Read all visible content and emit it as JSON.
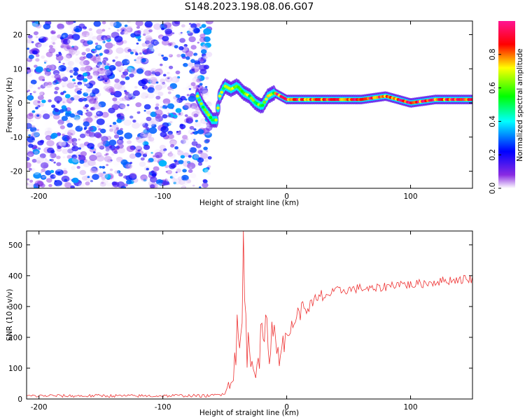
{
  "figure_title": "S148.2023.198.08.06.G07",
  "chart_data": [
    {
      "type": "heatmap",
      "xlabel": "Height of straight line (km)",
      "ylabel": "Frequency (Hz)",
      "xlim": [
        -210,
        150
      ],
      "ylim": [
        -25,
        24
      ],
      "x_ticks": [
        -200,
        -100,
        0,
        100
      ],
      "y_ticks": [
        -20,
        -10,
        0,
        10,
        20
      ],
      "colorbar": {
        "label": "Normalized spectral amplitude",
        "range": [
          0,
          1
        ],
        "ticks": [
          0.0,
          0.2,
          0.4,
          0.6,
          0.8
        ],
        "colors": [
          "#ffffff",
          "#8a2be2",
          "#0000ff",
          "#00ffff",
          "#00ff00",
          "#ffff00",
          "#ff0000",
          "#ff1493"
        ]
      },
      "noise_region": {
        "x_start": -210,
        "x_end": -62,
        "freq_min": -25,
        "freq_max": 24,
        "max_amplitude": 0.35
      },
      "ridge": [
        {
          "x": -72,
          "freq": 2
        },
        {
          "x": -68,
          "freq": -1
        },
        {
          "x": -64,
          "freq": -3
        },
        {
          "x": -60,
          "freq": -5
        },
        {
          "x": -57,
          "freq": -5
        },
        {
          "x": -54,
          "freq": 2
        },
        {
          "x": -50,
          "freq": 5
        },
        {
          "x": -45,
          "freq": 4
        },
        {
          "x": -40,
          "freq": 5
        },
        {
          "x": -35,
          "freq": 3
        },
        {
          "x": -30,
          "freq": 2
        },
        {
          "x": -25,
          "freq": 0
        },
        {
          "x": -20,
          "freq": -1
        },
        {
          "x": -15,
          "freq": 2
        },
        {
          "x": -10,
          "freq": 3
        },
        {
          "x": 0,
          "freq": 1
        },
        {
          "x": 20,
          "freq": 1
        },
        {
          "x": 40,
          "freq": 1
        },
        {
          "x": 60,
          "freq": 1
        },
        {
          "x": 80,
          "freq": 2
        },
        {
          "x": 100,
          "freq": 0
        },
        {
          "x": 120,
          "freq": 1
        },
        {
          "x": 150,
          "freq": 1
        }
      ]
    },
    {
      "type": "line",
      "xlabel": "Height of straight line (km)",
      "ylabel": "SNR (10 * v/v)",
      "xlim": [
        -210,
        150
      ],
      "ylim": [
        0,
        545
      ],
      "x_ticks": [
        -200,
        -100,
        0,
        100
      ],
      "y_ticks": [
        0,
        100,
        200,
        300,
        400,
        500
      ],
      "color": "#ee3333",
      "x_step": 1,
      "series": [
        {
          "values": [
            [
              -210,
              10
            ],
            [
              -200,
              10
            ],
            [
              -190,
              11
            ],
            [
              -180,
              10
            ],
            [
              -170,
              10
            ],
            [
              -160,
              10
            ],
            [
              -150,
              11
            ],
            [
              -140,
              10
            ],
            [
              -130,
              10
            ],
            [
              -120,
              10
            ],
            [
              -110,
              10
            ],
            [
              -100,
              10
            ],
            [
              -90,
              11
            ],
            [
              -80,
              11
            ],
            [
              -70,
              10
            ],
            [
              -60,
              11
            ],
            [
              -55,
              14
            ],
            [
              -50,
              25
            ],
            [
              -45,
              55
            ],
            [
              -42,
              130
            ],
            [
              -40,
              200
            ],
            [
              -38,
              150
            ],
            [
              -36,
              240
            ],
            [
              -35,
              545
            ],
            [
              -34,
              300
            ],
            [
              -32,
              180
            ],
            [
              -30,
              140
            ],
            [
              -25,
              120
            ],
            [
              -20,
              180
            ],
            [
              -15,
              200
            ],
            [
              -10,
              210
            ],
            [
              -5,
              170
            ],
            [
              0,
              190
            ],
            [
              5,
              250
            ],
            [
              10,
              280
            ],
            [
              15,
              300
            ],
            [
              20,
              300
            ],
            [
              25,
              320
            ],
            [
              30,
              335
            ],
            [
              35,
              340
            ],
            [
              40,
              350
            ],
            [
              50,
              355
            ],
            [
              60,
              360
            ],
            [
              70,
              355
            ],
            [
              80,
              365
            ],
            [
              90,
              375
            ],
            [
              100,
              370
            ],
            [
              110,
              375
            ],
            [
              120,
              380
            ],
            [
              130,
              385
            ],
            [
              140,
              388
            ],
            [
              150,
              390
            ]
          ]
        }
      ]
    }
  ]
}
